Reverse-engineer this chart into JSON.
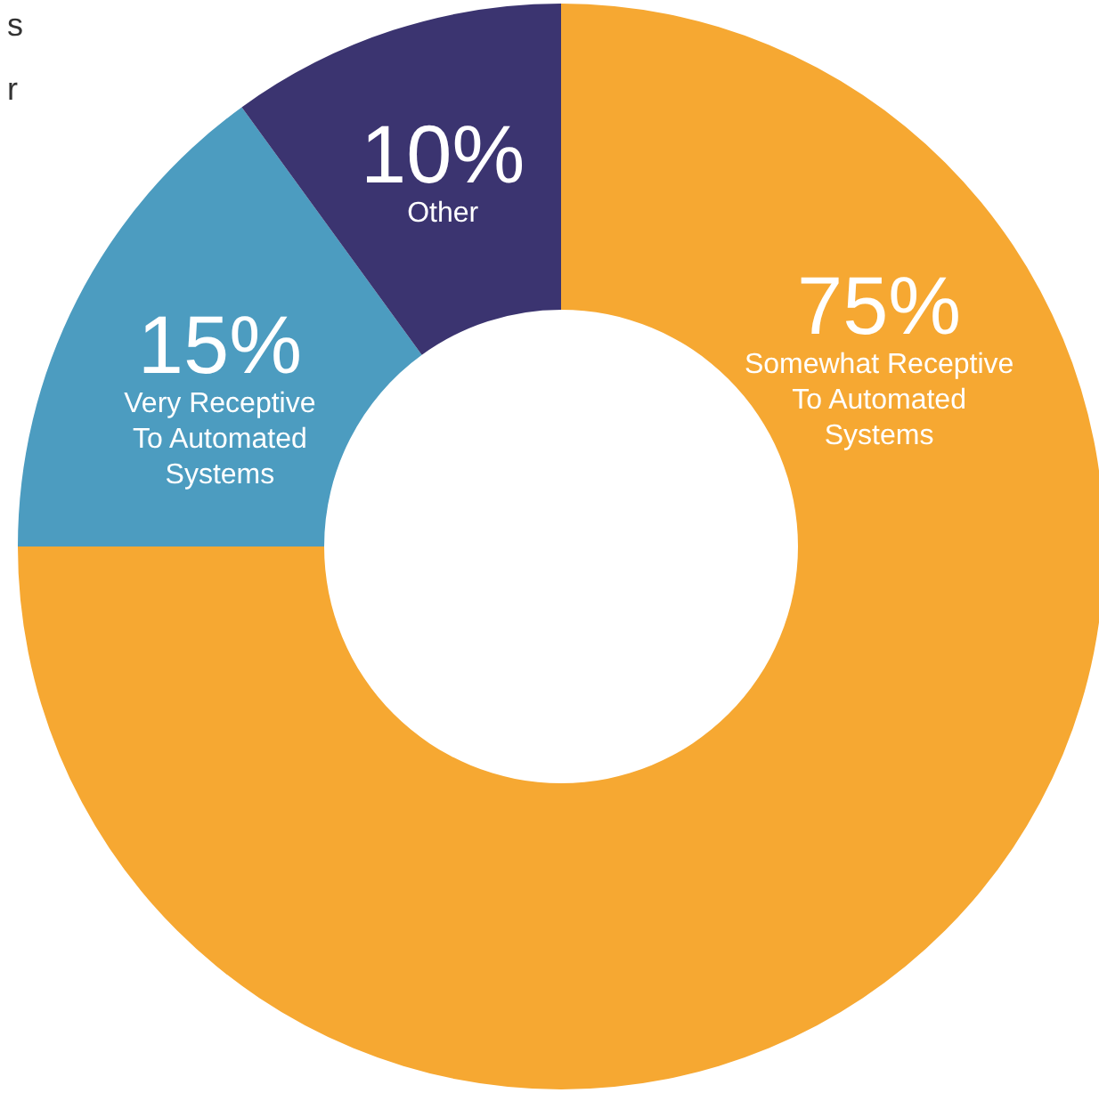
{
  "chart_data": {
    "type": "donut",
    "categories": [
      "Somewhat Receptive\nTo Automated\nSystems",
      "Very Receptive\nTo Automated\nSystems",
      "Other"
    ],
    "values": [
      75,
      15,
      10
    ],
    "colors": [
      "#f6a832",
      "#4c9cc0",
      "#3b3470"
    ],
    "value_labels": [
      "75%",
      "15%",
      "10%"
    ],
    "annotations": [
      "s",
      "r"
    ]
  }
}
